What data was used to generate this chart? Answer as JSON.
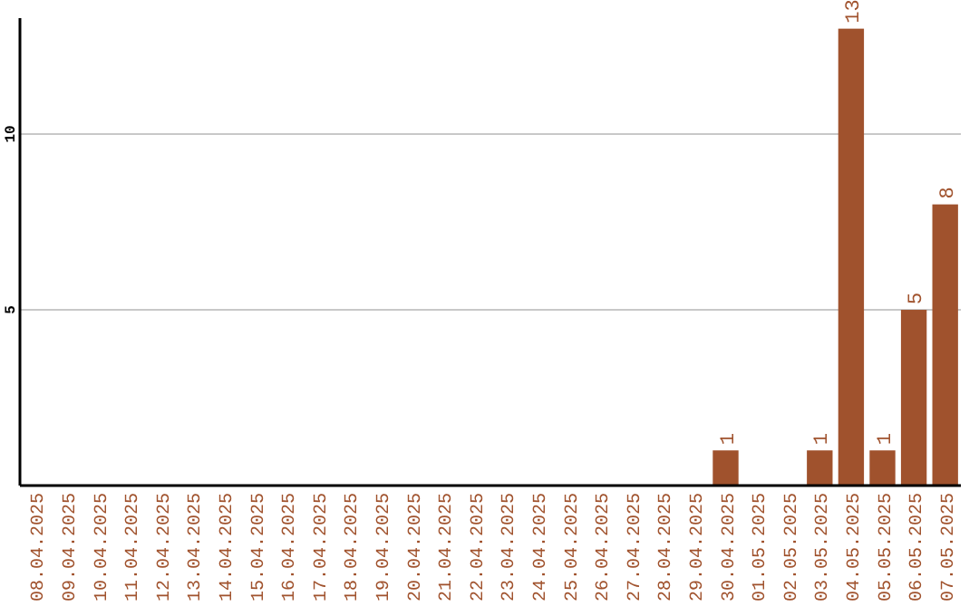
{
  "chart_data": {
    "type": "bar",
    "categories": [
      "08.04.2025",
      "09.04.2025",
      "10.04.2025",
      "11.04.2025",
      "12.04.2025",
      "13.04.2025",
      "14.04.2025",
      "15.04.2025",
      "16.04.2025",
      "17.04.2025",
      "18.04.2025",
      "19.04.2025",
      "20.04.2025",
      "21.04.2025",
      "22.04.2025",
      "23.04.2025",
      "24.04.2025",
      "25.04.2025",
      "26.04.2025",
      "27.04.2025",
      "28.04.2025",
      "29.04.2025",
      "30.04.2025",
      "01.05.2025",
      "02.05.2025",
      "03.05.2025",
      "04.05.2025",
      "05.05.2025",
      "06.05.2025",
      "07.05.2025"
    ],
    "values": [
      0,
      0,
      0,
      0,
      0,
      0,
      0,
      0,
      0,
      0,
      0,
      0,
      0,
      0,
      0,
      0,
      0,
      0,
      0,
      0,
      0,
      0,
      1,
      0,
      0,
      1,
      13,
      1,
      5,
      8
    ],
    "value_labels": [
      null,
      null,
      null,
      null,
      null,
      null,
      null,
      null,
      null,
      null,
      null,
      null,
      null,
      null,
      null,
      null,
      null,
      null,
      null,
      null,
      null,
      null,
      "1",
      null,
      null,
      "1",
      "13",
      "1",
      "5",
      "8"
    ],
    "color": "#a0522d",
    "ylim": [
      0,
      13.3
    ],
    "yticks": [
      5,
      10
    ],
    "grid": "y"
  }
}
